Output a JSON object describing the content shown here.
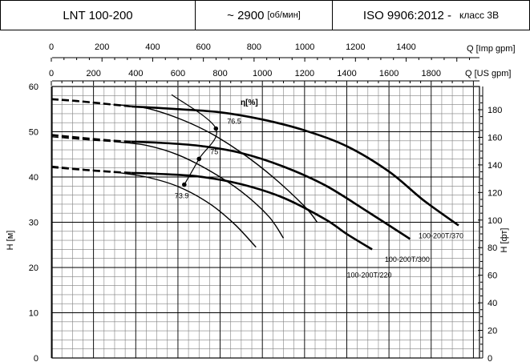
{
  "header": {
    "model": "LNT 100-200",
    "speed": "~ 2900",
    "speed_unit": "[об/мин]",
    "standard": "ISO 9906:2012 -",
    "class": "класс 3B"
  },
  "chart_data": {
    "type": "line",
    "title": "",
    "xlabel_top": "Q [Imp gpm]",
    "xlabel": "Q [US gpm]",
    "ylabel": "H [м]",
    "ylabel_right": "H [фт]",
    "eta_label": "η[%]",
    "xlim_us_gpm": [
      0,
      1990
    ],
    "ylim_m": [
      0,
      60
    ],
    "ylim_ft": [
      0,
      196.85
    ],
    "x_ticks_imp": [
      "0",
      "200",
      "400",
      "600",
      "800",
      "1000",
      "1200",
      "1400"
    ],
    "x_ticks_imp_values": [
      0,
      200,
      400,
      600,
      800,
      1000,
      1200,
      1400
    ],
    "x_ticks_us": [
      "0",
      "200",
      "400",
      "600",
      "800",
      "1000",
      "1200",
      "1400",
      "1600",
      "1800"
    ],
    "x_ticks_us_values": [
      0,
      200,
      400,
      600,
      800,
      1000,
      1200,
      1400,
      1600,
      1800
    ],
    "y_ticks_m": [
      "0",
      "10",
      "20",
      "30",
      "40",
      "50",
      "60"
    ],
    "y_ticks_m_values": [
      0,
      10,
      20,
      30,
      40,
      50,
      60
    ],
    "y_ticks_ft": [
      "0",
      "20",
      "40",
      "60",
      "80",
      "100",
      "120",
      "140",
      "160",
      "180"
    ],
    "y_ticks_ft_values": [
      0,
      20,
      40,
      60,
      80,
      100,
      120,
      140,
      160,
      180
    ],
    "grid": true,
    "series": [
      {
        "name": "100-200T/370",
        "dashed": [
          [
            0,
            57.2
          ],
          [
            120,
            56.8
          ],
          [
            270,
            56.1
          ],
          [
            380,
            55.6
          ]
        ],
        "solid": [
          [
            380,
            55.6
          ],
          [
            600,
            55.0
          ],
          [
            800,
            54.3
          ],
          [
            1000,
            52.7
          ],
          [
            1200,
            50.3
          ],
          [
            1400,
            46.8
          ],
          [
            1600,
            41.2
          ],
          [
            1760,
            35.0
          ],
          [
            1930,
            29.3
          ]
        ],
        "label_q": 1740,
        "label_h": 26.5
      },
      {
        "name": "100-200T/300",
        "dashed": [
          [
            0,
            49.3
          ],
          [
            150,
            48.6
          ],
          [
            300,
            48.0
          ],
          [
            380,
            47.8
          ]
        ],
        "solid": [
          [
            380,
            47.8
          ],
          [
            500,
            47.6
          ],
          [
            700,
            46.9
          ],
          [
            900,
            45.3
          ],
          [
            1100,
            42.3
          ],
          [
            1300,
            38.1
          ],
          [
            1500,
            32.3
          ],
          [
            1700,
            26.3
          ]
        ],
        "label_q": 1580,
        "label_h": 21.2
      },
      {
        "name": "100-200T/220",
        "dashed": [
          [
            0,
            42.2
          ],
          [
            150,
            41.6
          ],
          [
            300,
            41.1
          ],
          [
            380,
            40.9
          ]
        ],
        "solid": [
          [
            380,
            40.9
          ],
          [
            500,
            40.7
          ],
          [
            700,
            40.1
          ],
          [
            900,
            38.4
          ],
          [
            1100,
            35.4
          ],
          [
            1300,
            30.6
          ],
          [
            1400,
            27.4
          ],
          [
            1520,
            24.0
          ]
        ],
        "label_q": 1400,
        "label_h": 17.8
      },
      {
        "name": "",
        "dashed": [
          [
            0,
            57.2
          ],
          [
            150,
            56.6
          ],
          [
            300,
            56.0
          ]
        ],
        "solid": [
          [
            300,
            56.0
          ],
          [
            450,
            55.2
          ],
          [
            600,
            53.0
          ],
          [
            750,
            49.8
          ],
          [
            900,
            45.4
          ],
          [
            1050,
            40.0
          ],
          [
            1200,
            33.5
          ],
          [
            1260,
            30.0
          ]
        ]
      },
      {
        "name": "",
        "dashed": [
          [
            0,
            48.9
          ],
          [
            150,
            48.3
          ],
          [
            300,
            47.8
          ]
        ],
        "solid": [
          [
            300,
            47.8
          ],
          [
            450,
            47.0
          ],
          [
            600,
            44.9
          ],
          [
            750,
            41.4
          ],
          [
            900,
            36.8
          ],
          [
            1030,
            31.3
          ],
          [
            1100,
            26.5
          ]
        ]
      },
      {
        "name": "",
        "dashed": [
          [
            0,
            42.4
          ],
          [
            150,
            41.7
          ],
          [
            300,
            41.1
          ]
        ],
        "solid": [
          [
            300,
            41.1
          ],
          [
            450,
            40.0
          ],
          [
            600,
            37.9
          ],
          [
            750,
            34.1
          ],
          [
            870,
            29.5
          ],
          [
            970,
            24.5
          ]
        ]
      }
    ],
    "efficiency_points": [
      {
        "label": "76.5",
        "q": 780,
        "h": 50.7
      },
      {
        "label": "75",
        "q": 700,
        "h": 44.0
      },
      {
        "label": "73.9",
        "q": 630,
        "h": 38.3
      }
    ]
  }
}
